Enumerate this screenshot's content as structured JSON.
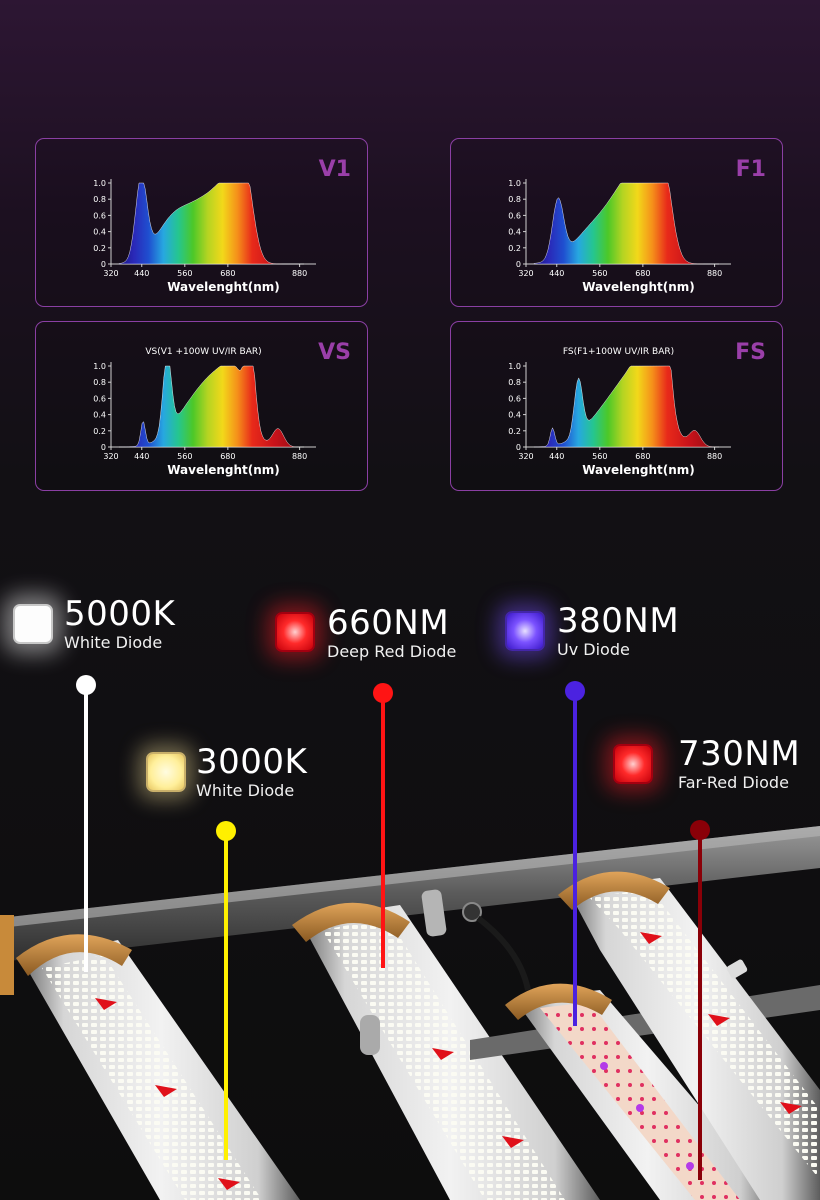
{
  "spectra": [
    {
      "id": "v1",
      "tag": "V1",
      "subtitle": "",
      "xlabel": "Wavelenght(nm)"
    },
    {
      "id": "f1",
      "tag": "F1",
      "subtitle": "",
      "xlabel": "Wavelenght(nm)"
    },
    {
      "id": "vs",
      "tag": "VS",
      "subtitle": "VS(V1 +100W UV/IR BAR)",
      "xlabel": "Wavelenght(nm)"
    },
    {
      "id": "fs",
      "tag": "FS",
      "subtitle": "FS(F1+100W UV/IR BAR)",
      "xlabel": "Wavelenght(nm)"
    }
  ],
  "axis": {
    "yticks": [
      "1.0",
      "0.8",
      "0.6",
      "0.4",
      "0.2",
      "0"
    ],
    "xticks": [
      "320",
      "440",
      "560",
      "680",
      "880"
    ]
  },
  "diodes": [
    {
      "id": "5000k",
      "value": "5000K",
      "name": "White Diode",
      "color": "#ffffff"
    },
    {
      "id": "3000k",
      "value": "3000K",
      "name": "White Diode",
      "color": "#fff000"
    },
    {
      "id": "660nm",
      "value": "660NM",
      "name": "Deep Red Diode",
      "color": "#ff1414"
    },
    {
      "id": "380nm",
      "value": "380NM",
      "name": "Uv Diode",
      "color": "#4b22e0"
    },
    {
      "id": "730nm",
      "value": "730NM",
      "name": "Far-Red Diode",
      "color": "#8a0008"
    }
  ]
}
